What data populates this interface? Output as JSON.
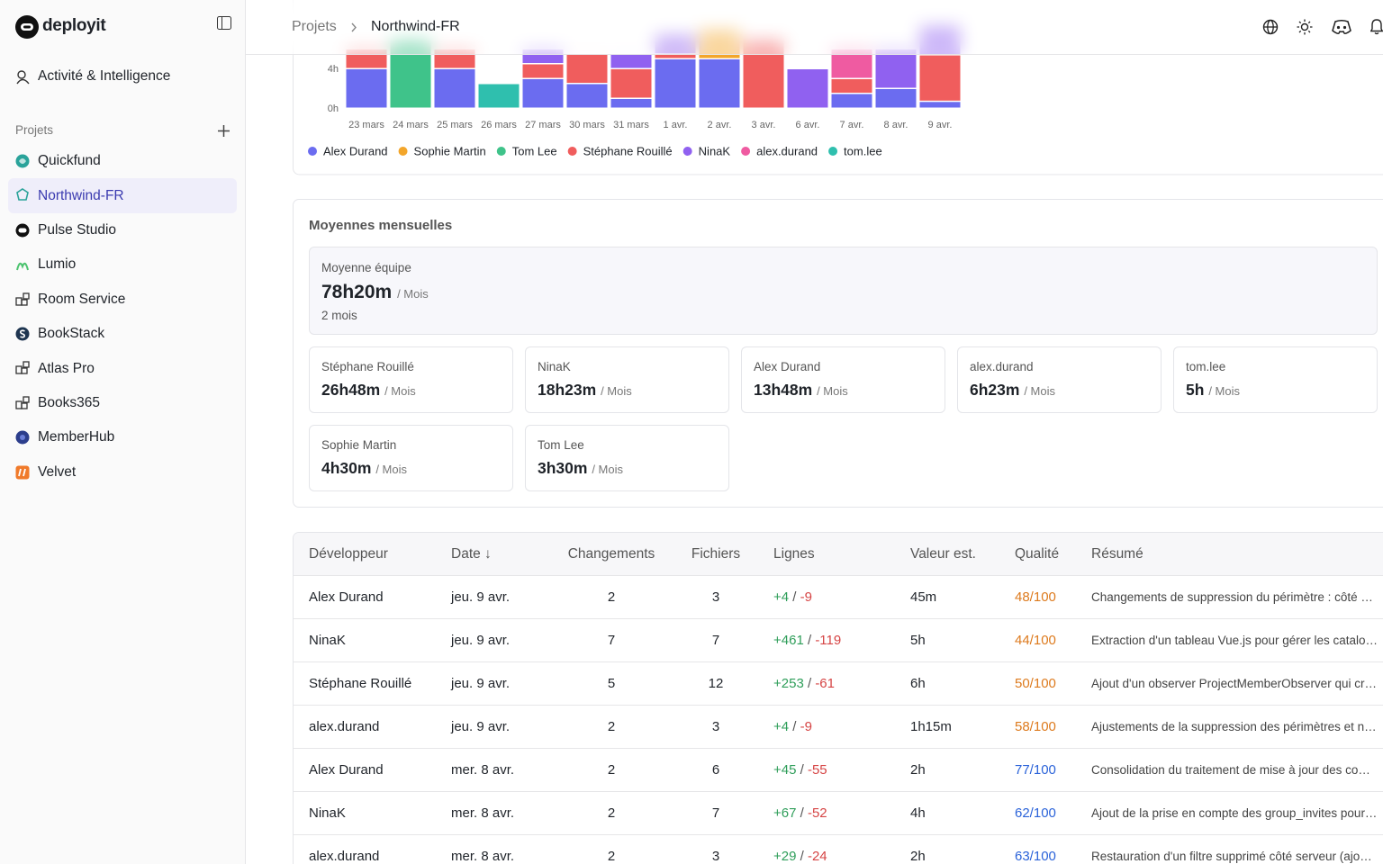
{
  "sidebar": {
    "brand": "deployit",
    "nav": "Activité & Intelligence",
    "section": "Projets",
    "projects": [
      "Quickfund",
      "Northwind-FR",
      "Pulse Studio",
      "Lumio",
      "Room Service",
      "BookStack",
      "Atlas Pro",
      "Books365",
      "MemberHub",
      "Velvet"
    ],
    "active": "Northwind-FR"
  },
  "header": {
    "breadcrumb": [
      "Projets",
      "Northwind-FR"
    ]
  },
  "chart_data": {
    "type": "stacked-bar",
    "categories": [
      "23 mars",
      "24 mars",
      "25 mars",
      "26 mars",
      "27 mars",
      "30 mars",
      "31 mars",
      "1 avr.",
      "2 avr.",
      "3 avr.",
      "6 avr.",
      "7 avr.",
      "8 avr.",
      "9 avr."
    ],
    "ylim": [
      0,
      11
    ],
    "yticks": [
      {
        "value": 0,
        "label": "0h"
      },
      {
        "value": 4,
        "label": "4h"
      }
    ],
    "series": [
      {
        "name": "Alex Durand",
        "color": "#6b6cf0",
        "values": [
          4,
          0,
          4,
          0,
          3,
          2.5,
          1,
          5,
          5,
          0,
          0,
          1.5,
          2,
          0.7
        ]
      },
      {
        "name": "Sophie Martin",
        "color": "#f3a62b",
        "values": [
          0,
          0,
          0,
          0,
          0,
          0,
          0,
          0,
          3,
          0,
          0,
          0,
          0,
          0
        ]
      },
      {
        "name": "Tom Lee",
        "color": "#3fc38a",
        "values": [
          0,
          7,
          0,
          0,
          0,
          0,
          0,
          0,
          0,
          0,
          0,
          0,
          0,
          0
        ]
      },
      {
        "name": "Stéphane Rouillé",
        "color": "#f05d5d",
        "values": [
          2,
          0,
          2,
          0,
          1.5,
          3,
          3,
          0.5,
          0,
          7,
          0,
          1.5,
          0,
          4.7
        ]
      },
      {
        "name": "NinaK",
        "color": "#9061f0",
        "values": [
          0,
          0,
          0,
          0,
          1.5,
          0,
          1.5,
          2,
          0,
          0,
          4,
          0,
          4,
          3
        ]
      },
      {
        "name": "alex.durand",
        "color": "#ef5ba1",
        "values": [
          0,
          0,
          0,
          0,
          0,
          0,
          0,
          0,
          0,
          0,
          0,
          3,
          0,
          0
        ]
      },
      {
        "name": "tom.lee",
        "color": "#2fbfae",
        "values": [
          0,
          0,
          0,
          2.5,
          0,
          0,
          0,
          0,
          0,
          0,
          0,
          0,
          0,
          0
        ]
      }
    ]
  },
  "monthly_averages": {
    "title": "Moyennes mensuelles",
    "unit": "/ Mois",
    "team": {
      "label": "Moyenne équipe",
      "value": "78h20m",
      "period": "2 mois"
    },
    "members": [
      {
        "name": "Stéphane Rouillé",
        "value": "26h48m"
      },
      {
        "name": "NinaK",
        "value": "18h23m"
      },
      {
        "name": "Alex Durand",
        "value": "13h48m"
      },
      {
        "name": "alex.durand",
        "value": "6h23m"
      },
      {
        "name": "tom.lee",
        "value": "5h"
      },
      {
        "name": "Sophie Martin",
        "value": "4h30m"
      },
      {
        "name": "Tom Lee",
        "value": "3h30m"
      }
    ]
  },
  "table": {
    "columns": [
      "Développeur",
      "Date ↓",
      "Changements",
      "Fichiers",
      "Lignes",
      "Valeur est.",
      "Qualité",
      "Résumé"
    ],
    "rows": [
      [
        "Alex Durand",
        "jeu. 9 avr.",
        2,
        3,
        "+4",
        "-9",
        "45m",
        "48/100",
        "Changements de suppression du périmètre : côté …"
      ],
      [
        "NinaK",
        "jeu. 9 avr.",
        7,
        7,
        "+461",
        "-119",
        "5h",
        "44/100",
        "Extraction d'un tableau Vue.js pour gérer les catalo…"
      ],
      [
        "Stéphane Rouillé",
        "jeu. 9 avr.",
        5,
        12,
        "+253",
        "-61",
        "6h",
        "50/100",
        "Ajout d'un observer ProjectMemberObserver qui cr…"
      ],
      [
        "alex.durand",
        "jeu. 9 avr.",
        2,
        3,
        "+4",
        "-9",
        "1h15m",
        "58/100",
        "Ajustements de la suppression des périmètres et n…"
      ],
      [
        "Alex Durand",
        "mer. 8 avr.",
        2,
        6,
        "+45",
        "-55",
        "2h",
        "77/100",
        "Consolidation du traitement de mise à jour des co…"
      ],
      [
        "NinaK",
        "mer. 8 avr.",
        2,
        7,
        "+67",
        "-52",
        "4h",
        "62/100",
        "Ajout de la prise en compte des group_invites pour…"
      ],
      [
        "alex.durand",
        "mer. 8 avr.",
        2,
        3,
        "+29",
        "-24",
        "2h",
        "63/100",
        "Restauration d'un filtre supprimé côté serveur (ajo…"
      ]
    ]
  }
}
